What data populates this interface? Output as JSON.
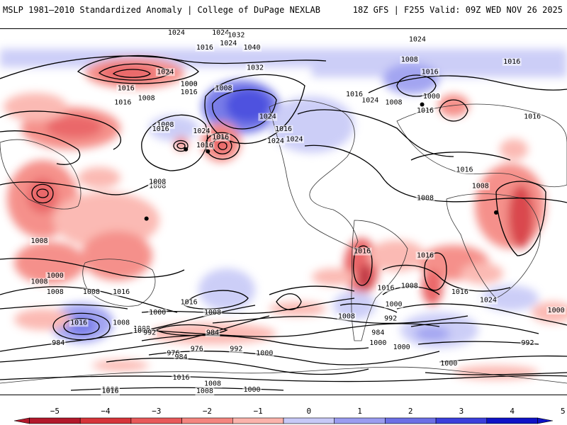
{
  "header": {
    "left_title": "MSLP 1981–2010 Standardized Anomaly | College of DuPage NEXLAB",
    "right_title": "18Z GFS | F255 Valid: 09Z WED NOV 26 2025"
  },
  "map": {
    "isobar_labels": [
      {
        "text": "1024",
        "lon": -45,
        "lat": 54
      },
      {
        "text": "1024",
        "lon": -135,
        "lat": 82
      },
      {
        "text": "1016",
        "lon": -150,
        "lat": 80
      },
      {
        "text": "1008",
        "lon": -160,
        "lat": 62
      },
      {
        "text": "1000",
        "lon": -160,
        "lat": 62
      },
      {
        "text": "1016",
        "lon": -160,
        "lat": 58
      },
      {
        "text": "1008",
        "lon": -138,
        "lat": 60
      },
      {
        "text": "1024",
        "lon": -140,
        "lat": 90
      },
      {
        "text": "1032",
        "lon": -130,
        "lat": 86
      },
      {
        "text": "1040",
        "lon": -120,
        "lat": 80
      },
      {
        "text": "1032",
        "lon": -118,
        "lat": 70
      },
      {
        "text": "1024",
        "lon": -168,
        "lat": 90
      },
      {
        "text": "1016",
        "lon": 160,
        "lat": 60
      },
      {
        "text": "1008",
        "lon": 173,
        "lat": 55
      },
      {
        "text": "1016",
        "lon": 158,
        "lat": 53
      },
      {
        "text": "1008",
        "lon": -175,
        "lat": 42
      },
      {
        "text": "1016",
        "lon": -178,
        "lat": 40
      },
      {
        "text": "1024",
        "lon": -152,
        "lat": 39
      },
      {
        "text": "1016",
        "lon": -150,
        "lat": 32
      },
      {
        "text": "1016",
        "lon": -140,
        "lat": 36
      },
      {
        "text": "1016",
        "lon": -100,
        "lat": 40
      },
      {
        "text": "1024",
        "lon": -105,
        "lat": 34
      },
      {
        "text": "1024",
        "lon": -93,
        "lat": 35
      },
      {
        "text": "1024",
        "lon": -110,
        "lat": 46
      },
      {
        "text": "1016",
        "lon": -55,
        "lat": 57
      },
      {
        "text": "1008",
        "lon": -30,
        "lat": 53
      },
      {
        "text": "1024",
        "lon": -15,
        "lat": 84
      },
      {
        "text": "1008",
        "lon": -20,
        "lat": 74
      },
      {
        "text": "1016",
        "lon": -7,
        "lat": 68
      },
      {
        "text": "1000",
        "lon": -6,
        "lat": 56
      },
      {
        "text": "1016",
        "lon": -10,
        "lat": 49
      },
      {
        "text": "1016",
        "lon": 45,
        "lat": 73
      },
      {
        "text": "1016",
        "lon": 58,
        "lat": 46
      },
      {
        "text": "1016",
        "lon": 15,
        "lat": 20
      },
      {
        "text": "1008",
        "lon": 25,
        "lat": 12
      },
      {
        "text": "1008",
        "lon": 180,
        "lat": 12
      },
      {
        "text": "1008",
        "lon": -180,
        "lat": 14
      },
      {
        "text": "1008",
        "lon": -10,
        "lat": 6
      },
      {
        "text": "1016",
        "lon": -10,
        "lat": -22
      },
      {
        "text": "1016",
        "lon": 12,
        "lat": -40
      },
      {
        "text": "1024",
        "lon": 30,
        "lat": -44
      },
      {
        "text": "1016",
        "lon": -35,
        "lat": -38
      },
      {
        "text": "1000",
        "lon": -30,
        "lat": -46
      },
      {
        "text": "992",
        "lon": -32,
        "lat": -53
      },
      {
        "text": "1008",
        "lon": -60,
        "lat": -52
      },
      {
        "text": "984",
        "lon": -40,
        "lat": -60
      },
      {
        "text": "1000",
        "lon": -40,
        "lat": -65
      },
      {
        "text": "1000",
        "lon": 75,
        "lat": -49
      },
      {
        "text": "984",
        "lon": 117,
        "lat": -65
      },
      {
        "text": "992",
        "lon": 55,
        "lat": -65
      },
      {
        "text": "1000",
        "lon": 5,
        "lat": -75
      },
      {
        "text": "1000",
        "lon": -25,
        "lat": -67
      },
      {
        "text": "1008",
        "lon": 105,
        "lat": -15
      },
      {
        "text": "1000",
        "lon": 115,
        "lat": -32
      },
      {
        "text": "1008",
        "lon": 115,
        "lat": -40
      },
      {
        "text": "1016",
        "lon": 130,
        "lat": -55
      },
      {
        "text": "1008",
        "lon": 170,
        "lat": -58
      },
      {
        "text": "1000",
        "lon": 170,
        "lat": -59
      },
      {
        "text": "992",
        "lon": 175,
        "lat": -60
      },
      {
        "text": "1008",
        "lon": 138,
        "lat": -40
      },
      {
        "text": "1016",
        "lon": -160,
        "lat": -45
      },
      {
        "text": "1008",
        "lon": -145,
        "lat": -50
      },
      {
        "text": "984",
        "lon": -145,
        "lat": -60
      },
      {
        "text": "976",
        "lon": -155,
        "lat": -68
      },
      {
        "text": "976",
        "lon": -170,
        "lat": -70
      },
      {
        "text": "984",
        "lon": -165,
        "lat": -72
      },
      {
        "text": "992",
        "lon": -130,
        "lat": -68
      },
      {
        "text": "1000",
        "lon": -112,
        "lat": -70
      },
      {
        "text": "1008",
        "lon": -145,
        "lat": -85
      },
      {
        "text": "1016",
        "lon": -165,
        "lat": -82
      },
      {
        "text": "1016",
        "lon": 157,
        "lat": -40
      },
      {
        "text": "1008",
        "lon": 157,
        "lat": -55
      },
      {
        "text": "1016",
        "lon": -50,
        "lat": -20
      },
      {
        "text": "1008",
        "lon": 105,
        "lat": -35
      },
      {
        "text": "1008",
        "lon": -20,
        "lat": -37
      },
      {
        "text": "1000",
        "lon": -180,
        "lat": -50
      },
      {
        "text": "1000",
        "lon": -120,
        "lat": -88
      },
      {
        "text": "1000",
        "lon": 150,
        "lat": -88
      },
      {
        "text": "1024",
        "lon": -175,
        "lat": 68
      },
      {
        "text": "1008",
        "lon": -150,
        "lat": -90
      },
      {
        "text": "1016",
        "lon": 150,
        "lat": -92
      }
    ],
    "low_centers": [
      {
        "lon": -148,
        "lat": 30
      },
      {
        "lon": 173,
        "lat": -3
      },
      {
        "lon": -162,
        "lat": 31
      },
      {
        "lon": 35,
        "lat": 0
      },
      {
        "lon": -12,
        "lat": 53
      }
    ]
  },
  "colorbar": {
    "ticks": [
      "−5",
      "−4",
      "−3",
      "−2",
      "−1",
      "0",
      "1",
      "2",
      "3",
      "4",
      "5"
    ],
    "colors": [
      "#b2182b",
      "#d6343a",
      "#e8595a",
      "#f4857f",
      "#fbb3ac",
      "#ffffff",
      "#c7c9f7",
      "#9a9cf0",
      "#6c6fe6",
      "#3b3fdc",
      "#0e12c6"
    ]
  }
}
